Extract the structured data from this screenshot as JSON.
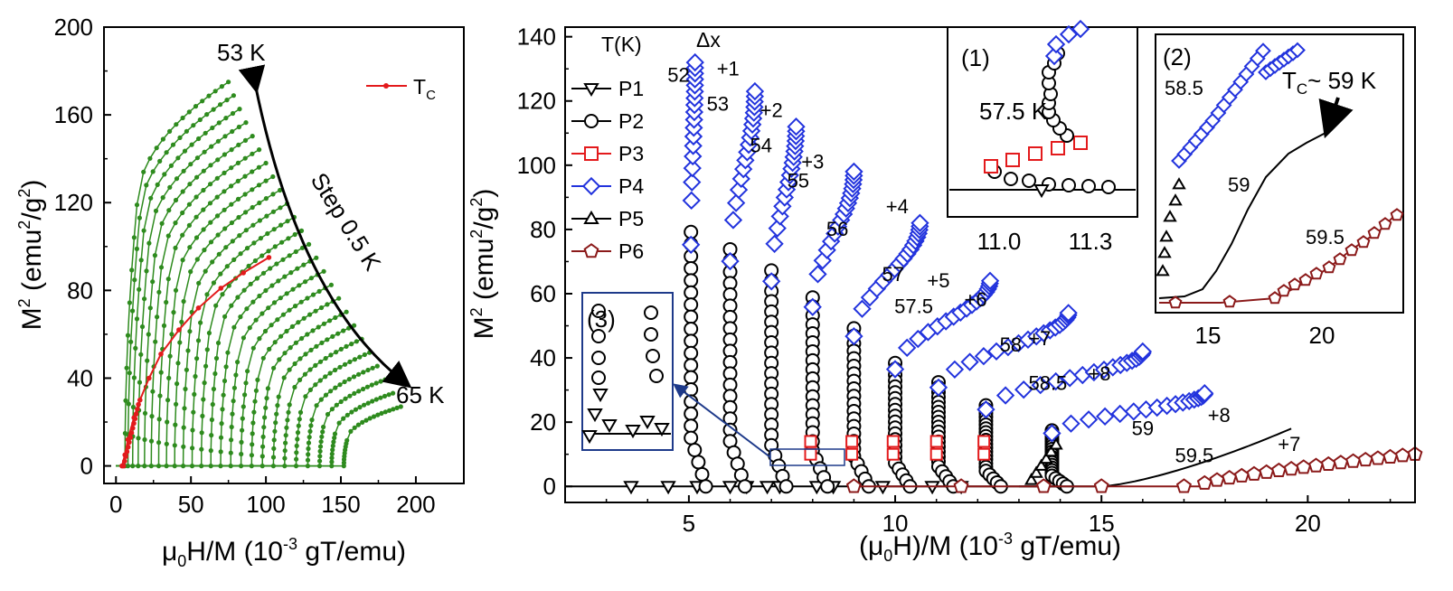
{
  "chart_data": [
    {
      "type": "line",
      "panel": "left",
      "title": "",
      "xlabel": {
        "mu": "μ",
        "sub": "0",
        "rest": "H/M (10",
        "sup": "-3",
        "end": " gT/emu)"
      },
      "ylabel": {
        "pre": "M",
        "sup": "2",
        "mid": " (emu",
        "sup2": "2",
        "mid2": "/g",
        "sup3": "2",
        "end": ")"
      },
      "xlim": [
        -8,
        232
      ],
      "ylim": [
        -8,
        200
      ],
      "xticks": [
        0,
        50,
        100,
        150,
        200
      ],
      "yticks": [
        0,
        40,
        80,
        120,
        160,
        200
      ],
      "legend": [
        {
          "label_main": "T",
          "label_sub": "C",
          "color": "#e31a1c"
        }
      ],
      "isotherms": {
        "count": 25,
        "t_start_K": 53,
        "t_step_K": 0.5,
        "t_end_K": 65,
        "color": "#2e8b1e"
      },
      "tc_curve": {
        "name": "T_C",
        "color": "#e31a1c",
        "points": [
          [
            4,
            0
          ],
          [
            6,
            5
          ],
          [
            8,
            12
          ],
          [
            12,
            22
          ],
          [
            16,
            30
          ],
          [
            22,
            40
          ],
          [
            30,
            51
          ],
          [
            42,
            62
          ],
          [
            55,
            72
          ],
          [
            70,
            81
          ],
          [
            85,
            88
          ],
          [
            102,
            95
          ]
        ]
      },
      "annotations": {
        "top_temp": "53 K",
        "bottom_temp": "65 K",
        "step": "Step 0.5 K"
      }
    },
    {
      "type": "scatter",
      "panel": "right",
      "xlabel": {
        "pre": "(μ",
        "sub": "0",
        "rest": "H)/M (10",
        "sup": "-3",
        "end": " gT/emu)"
      },
      "ylabel": {
        "pre": "M",
        "sup": "2",
        "mid": " (emu",
        "sup2": "2",
        "mid2": "/g",
        "sup3": "2",
        "end": ")"
      },
      "xlim": [
        2.0,
        22.6
      ],
      "ylim": [
        -5,
        143
      ],
      "xticks": [
        5,
        10,
        15,
        20
      ],
      "yticks": [
        0,
        20,
        40,
        60,
        80,
        100,
        120,
        140
      ],
      "legend_title": "T(K)",
      "legend_dx_label": "Δx",
      "series": [
        {
          "name": "P1",
          "marker": "triangle-down",
          "color": "#000000"
        },
        {
          "name": "P2",
          "marker": "circle",
          "color": "#000000"
        },
        {
          "name": "P3",
          "marker": "square",
          "color": "#e31a1c"
        },
        {
          "name": "P4",
          "marker": "diamond",
          "color": "#2233dd"
        },
        {
          "name": "P5",
          "marker": "triangle-up",
          "color": "#000000"
        },
        {
          "name": "P6",
          "marker": "pentagon",
          "color": "#8b1a1a"
        }
      ],
      "isotherm_curves": [
        {
          "temp": "52",
          "dx": "",
          "xc": 5.05,
          "xend": 5.15,
          "ymax": 132
        },
        {
          "temp": "53",
          "dx": "+1",
          "xc": 6.0,
          "xend": 6.6,
          "ymax": 123
        },
        {
          "temp": "54",
          "dx": "+2",
          "xc": 7.0,
          "xend": 7.6,
          "ymax": 112
        },
        {
          "temp": "55",
          "dx": "+3",
          "xc": 8.0,
          "xend": 9.0,
          "ymax": 98
        },
        {
          "temp": "56",
          "dx": "+4",
          "xc": 9.0,
          "xend": 10.6,
          "ymax": 82
        },
        {
          "temp": "57",
          "dx": "+5",
          "xc": 10.0,
          "xend": 12.3,
          "ymax": 64
        },
        {
          "temp": "57.5",
          "dx": "+6",
          "xc": 11.05,
          "xend": 14.2,
          "ymax": 54
        },
        {
          "temp": "58",
          "dx": "+7",
          "xc": 12.2,
          "xend": 16.0,
          "ymax": 42
        },
        {
          "temp": "58.5",
          "dx": "+8",
          "xc": 13.8,
          "xend": 17.5,
          "ymax": 29
        },
        {
          "temp": "59",
          "dx": "+8",
          "xc": 15.0,
          "xend": 19.6,
          "ymax": 18
        },
        {
          "temp": "59.5",
          "dx": "+7",
          "xc": 17.5,
          "xend": 22.6,
          "ymax": 10
        }
      ],
      "inset1": {
        "label": "(1)",
        "temp": "57.5 K",
        "xticks": [
          "11.0",
          "11.3"
        ]
      },
      "inset2": {
        "label": "(2)",
        "tc_main": "T",
        "tc_sub": "C",
        "tc_rest": "~ 59 K",
        "temps": [
          "58.5",
          "59",
          "59.5"
        ],
        "xticks": [
          "15",
          "20"
        ]
      },
      "inset3": {
        "label": "(3)"
      }
    }
  ]
}
